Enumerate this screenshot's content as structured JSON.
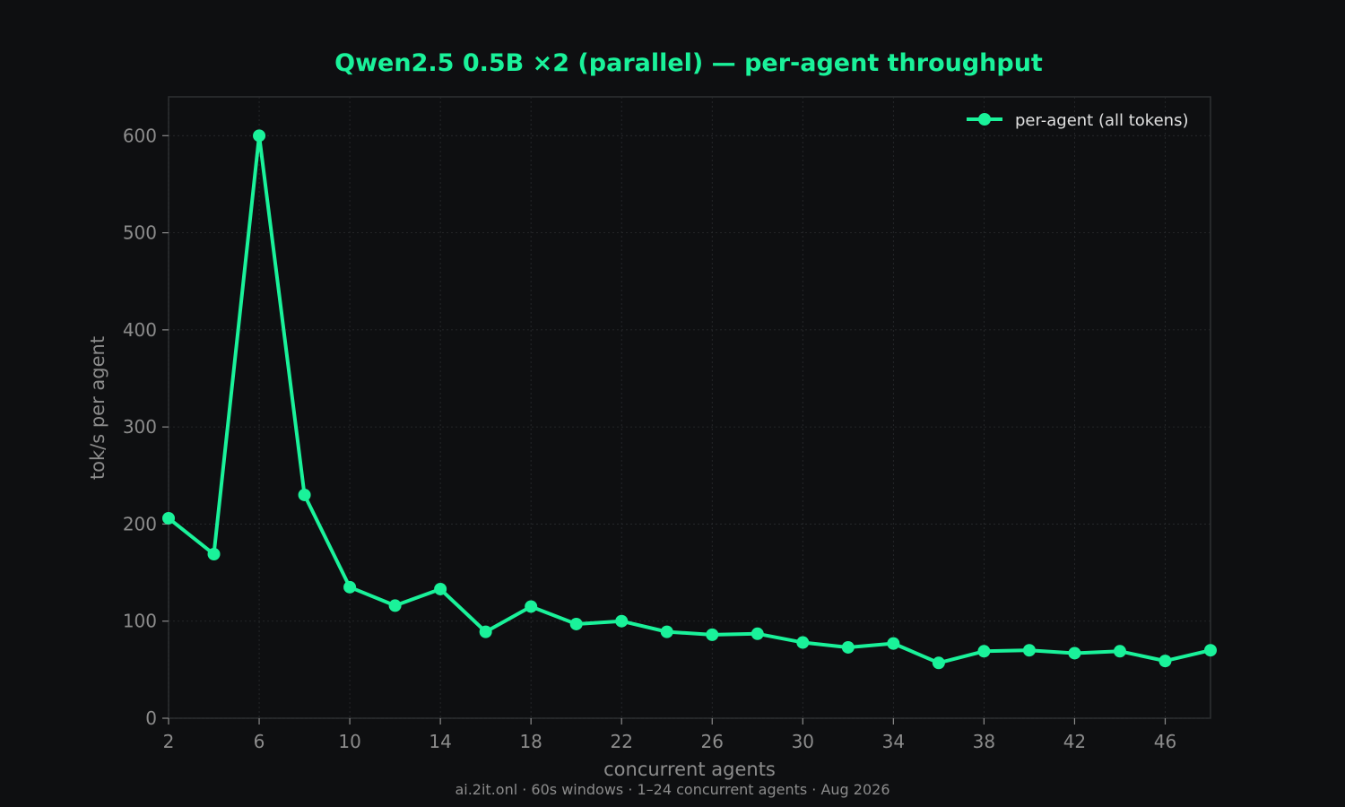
{
  "chart_data": {
    "type": "line",
    "title": "Qwen2.5 0.5B ×2 (parallel) — per-agent throughput",
    "xlabel": "concurrent agents",
    "ylabel": "tok/s per agent",
    "footer": "ai.2it.onl · 60s windows · 1–24 concurrent agents · Aug 2026",
    "xlim": [
      2,
      48
    ],
    "ylim": [
      0,
      640
    ],
    "xticks": [
      2,
      6,
      10,
      14,
      18,
      22,
      26,
      30,
      34,
      38,
      42,
      46
    ],
    "yticks": [
      0,
      100,
      200,
      300,
      400,
      500,
      600
    ],
    "grid": true,
    "legend_position": "top-right",
    "series": [
      {
        "name": "per-agent (all tokens)",
        "color": "#1af29a",
        "x": [
          2,
          4,
          6,
          8,
          10,
          12,
          14,
          16,
          18,
          20,
          22,
          24,
          26,
          28,
          30,
          32,
          34,
          36,
          38,
          40,
          42,
          44,
          46,
          48
        ],
        "y": [
          206,
          169,
          600,
          230,
          135,
          116,
          133,
          89,
          115,
          97,
          100,
          89,
          86,
          87,
          78,
          73,
          77,
          57,
          69,
          70,
          67,
          69,
          59,
          70
        ]
      }
    ]
  }
}
